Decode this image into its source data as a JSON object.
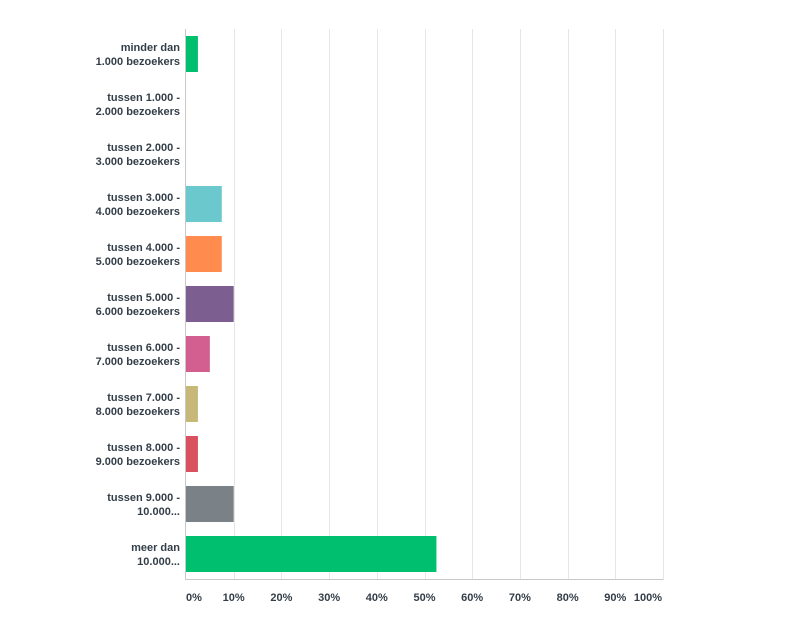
{
  "chart_data": {
    "type": "bar",
    "orientation": "horizontal",
    "categories": [
      [
        "minder dan",
        "1.000 bezoekers"
      ],
      [
        "tussen 1.000 -",
        "2.000 bezoekers"
      ],
      [
        "tussen 2.000 -",
        "3.000 bezoekers"
      ],
      [
        "tussen 3.000 -",
        "4.000 bezoekers"
      ],
      [
        "tussen 4.000 -",
        "5.000 bezoekers"
      ],
      [
        "tussen 5.000 -",
        "6.000 bezoekers"
      ],
      [
        "tussen 6.000 -",
        "7.000 bezoekers"
      ],
      [
        "tussen 7.000 -",
        "8.000 bezoekers"
      ],
      [
        "tussen 8.000 -",
        "9.000 bezoekers"
      ],
      [
        "tussen 9.000 -",
        "10.000..."
      ],
      [
        "meer dan",
        "10.000..."
      ]
    ],
    "values": [
      2.5,
      0,
      0,
      7.5,
      7.5,
      10,
      5,
      2.5,
      2.5,
      10,
      52.5
    ],
    "colors": [
      "#00bf6f",
      "#00bf6f",
      "#00bf6f",
      "#6bc8cd",
      "#ff8b4f",
      "#7d5e90",
      "#d25f90",
      "#c7b879",
      "#d9505e",
      "#7a8187",
      "#00bf6f"
    ],
    "xlim": [
      0,
      100
    ],
    "x_ticks": [
      "0%",
      "10%",
      "20%",
      "30%",
      "40%",
      "50%",
      "60%",
      "70%",
      "80%",
      "90%",
      "100%"
    ],
    "tick_values": [
      0,
      10,
      20,
      30,
      40,
      50,
      60,
      70,
      80,
      90,
      100
    ],
    "grid": true,
    "title": "",
    "xlabel": "",
    "ylabel": ""
  }
}
